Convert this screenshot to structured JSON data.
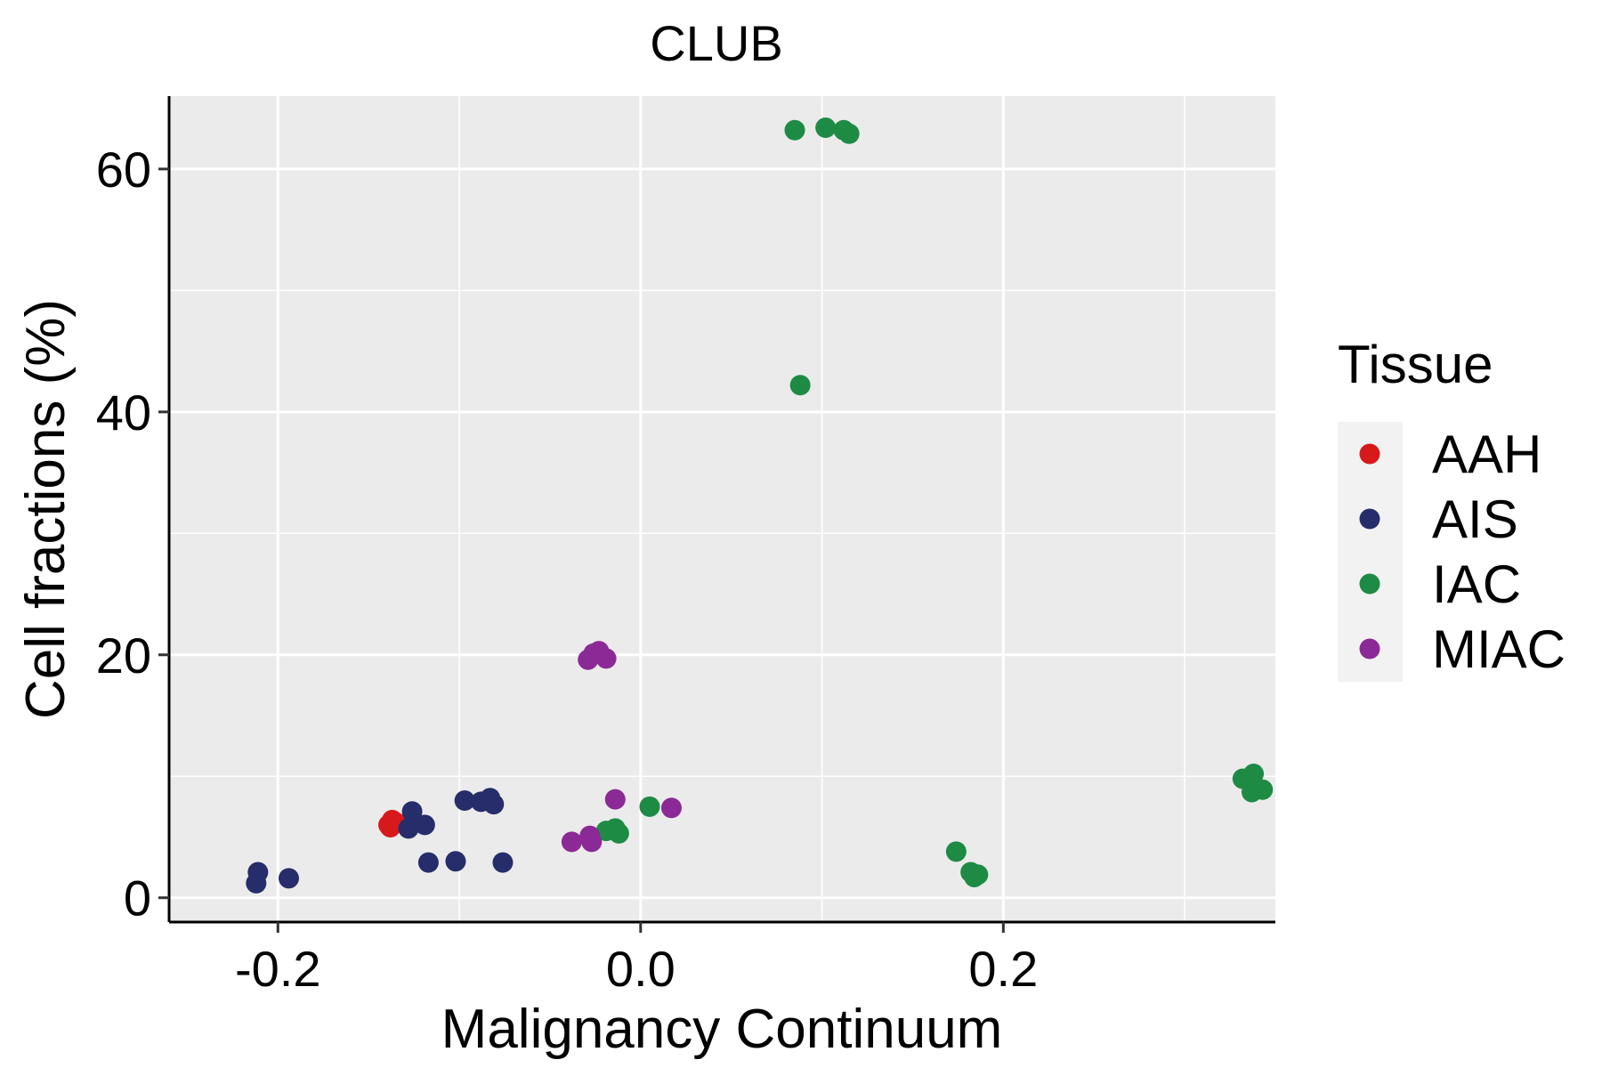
{
  "chart_data": {
    "type": "scatter",
    "title": "CLUB",
    "xlabel": "Malignancy Continuum",
    "ylabel": "Cell fractions (%)",
    "xlim": [
      -0.26,
      0.35
    ],
    "ylim": [
      -2,
      66
    ],
    "x_ticks": [
      -0.2,
      0.0,
      0.2
    ],
    "x_tick_labels": [
      "-0.2",
      "0.0",
      "0.2"
    ],
    "x_minor_ticks": [
      -0.1,
      0.1,
      0.3
    ],
    "y_ticks": [
      0,
      20,
      40,
      60
    ],
    "y_tick_labels": [
      "0",
      "20",
      "40",
      "60"
    ],
    "y_minor_ticks": [
      10,
      30,
      50
    ],
    "grid": true,
    "background": "#ebebeb",
    "legend": {
      "title": "Tissue",
      "position": "right",
      "entries": [
        {
          "label": "AAH",
          "color": "#d7191c"
        },
        {
          "label": "AIS",
          "color": "#262d6a"
        },
        {
          "label": "IAC",
          "color": "#1e8b45"
        },
        {
          "label": "MIAC",
          "color": "#8b2a96"
        }
      ]
    },
    "series": [
      {
        "name": "AAH",
        "color": "#d7191c",
        "points": [
          [
            -0.139,
            6.0
          ],
          [
            -0.138,
            5.8
          ],
          [
            -0.137,
            6.4
          ],
          [
            -0.135,
            6.2
          ]
        ]
      },
      {
        "name": "AIS",
        "color": "#262d6a",
        "points": [
          [
            -0.211,
            2.1
          ],
          [
            -0.212,
            1.2
          ],
          [
            -0.194,
            1.6
          ],
          [
            -0.126,
            7.1
          ],
          [
            -0.128,
            5.7
          ],
          [
            -0.119,
            6.0
          ],
          [
            -0.117,
            2.9
          ],
          [
            -0.102,
            3.0
          ],
          [
            -0.097,
            8.0
          ],
          [
            -0.088,
            7.9
          ],
          [
            -0.083,
            8.2
          ],
          [
            -0.081,
            7.7
          ],
          [
            -0.076,
            2.9
          ]
        ]
      },
      {
        "name": "IAC",
        "color": "#1e8b45",
        "points": [
          [
            0.085,
            63.2
          ],
          [
            0.102,
            63.4
          ],
          [
            0.112,
            63.2
          ],
          [
            0.115,
            62.9
          ],
          [
            0.088,
            42.2
          ],
          [
            0.005,
            7.5
          ],
          [
            -0.019,
            5.5
          ],
          [
            -0.014,
            5.7
          ],
          [
            -0.012,
            5.3
          ],
          [
            0.174,
            3.8
          ],
          [
            0.182,
            2.1
          ],
          [
            0.184,
            1.7
          ],
          [
            0.186,
            1.9
          ],
          [
            0.332,
            9.8
          ],
          [
            0.338,
            10.2
          ],
          [
            0.337,
            8.7
          ],
          [
            0.343,
            8.9
          ]
        ]
      },
      {
        "name": "MIAC",
        "color": "#8b2a96",
        "points": [
          [
            -0.029,
            19.6
          ],
          [
            -0.026,
            20.1
          ],
          [
            -0.023,
            20.3
          ],
          [
            -0.019,
            19.7
          ],
          [
            -0.014,
            8.1
          ],
          [
            0.017,
            7.4
          ],
          [
            -0.038,
            4.6
          ],
          [
            -0.028,
            5.1
          ],
          [
            -0.027,
            4.6
          ]
        ]
      }
    ]
  }
}
